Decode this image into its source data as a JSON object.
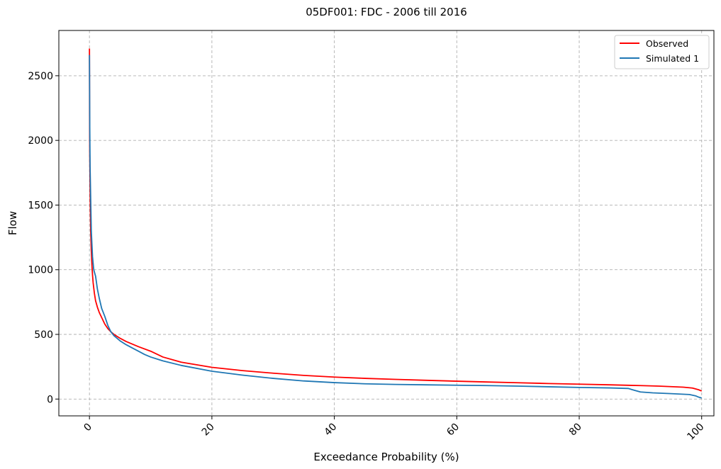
{
  "chart_data": {
    "type": "line",
    "title": "05DF001: FDC - 2006 till 2016",
    "xlabel": "Exceedance Probability (%)",
    "ylabel": "Flow",
    "xlim": [
      -5,
      102
    ],
    "ylim": [
      -130,
      2850
    ],
    "xticks": [
      0,
      20,
      40,
      60,
      80,
      100
    ],
    "yticks": [
      0,
      500,
      1000,
      1500,
      2000,
      2500
    ],
    "grid": true,
    "legend": "top-right",
    "series": [
      {
        "name": "Observed",
        "color": "#ff0000",
        "x": [
          0,
          0.02,
          0.05,
          0.1,
          0.15,
          0.2,
          0.3,
          0.4,
          0.5,
          0.6,
          0.8,
          1.0,
          1.3,
          1.6,
          2.0,
          2.5,
          3.0,
          3.5,
          4.0,
          5.0,
          6.0,
          8.0,
          10.0,
          12.0,
          15.0,
          20.0,
          25.0,
          30.0,
          35.0,
          40.0,
          45.0,
          50.0,
          55.0,
          60.0,
          65.0,
          70.0,
          75.0,
          80.0,
          85.0,
          90.0,
          93.0,
          95.0,
          97.0,
          98.5,
          99.5,
          100.0
        ],
        "y": [
          2710,
          2200,
          1900,
          1650,
          1450,
          1300,
          1150,
          1040,
          960,
          900,
          820,
          760,
          710,
          670,
          630,
          580,
          545,
          520,
          500,
          470,
          445,
          405,
          370,
          325,
          285,
          245,
          220,
          200,
          183,
          170,
          160,
          152,
          145,
          138,
          132,
          126,
          120,
          115,
          110,
          104,
          100,
          96,
          92,
          85,
          72,
          62
        ]
      },
      {
        "name": "Simulated 1",
        "color": "#1f77b4",
        "x": [
          0,
          0.05,
          0.1,
          0.2,
          0.3,
          0.5,
          0.7,
          1.0,
          1.3,
          1.6,
          2.0,
          2.5,
          3.0,
          3.5,
          4.0,
          4.5,
          5.0,
          6.0,
          7.0,
          8.0,
          9.0,
          10.0,
          12.0,
          15.0,
          20.0,
          25.0,
          30.0,
          35.0,
          40.0,
          45.0,
          50.0,
          55.0,
          60.0,
          65.0,
          70.0,
          75.0,
          80.0,
          85.0,
          88.0,
          89.0,
          90.0,
          92.0,
          95.0,
          98.0,
          99.0,
          99.5,
          100.0
        ],
        "y": [
          2660,
          2100,
          1800,
          1550,
          1300,
          1100,
          1000,
          950,
          850,
          780,
          700,
          640,
          570,
          520,
          490,
          470,
          450,
          420,
          395,
          370,
          345,
          325,
          295,
          260,
          215,
          185,
          160,
          140,
          127,
          118,
          113,
          110,
          107,
          104,
          100,
          95,
          90,
          86,
          82,
          68,
          55,
          48,
          42,
          35,
          25,
          15,
          8
        ]
      }
    ]
  }
}
